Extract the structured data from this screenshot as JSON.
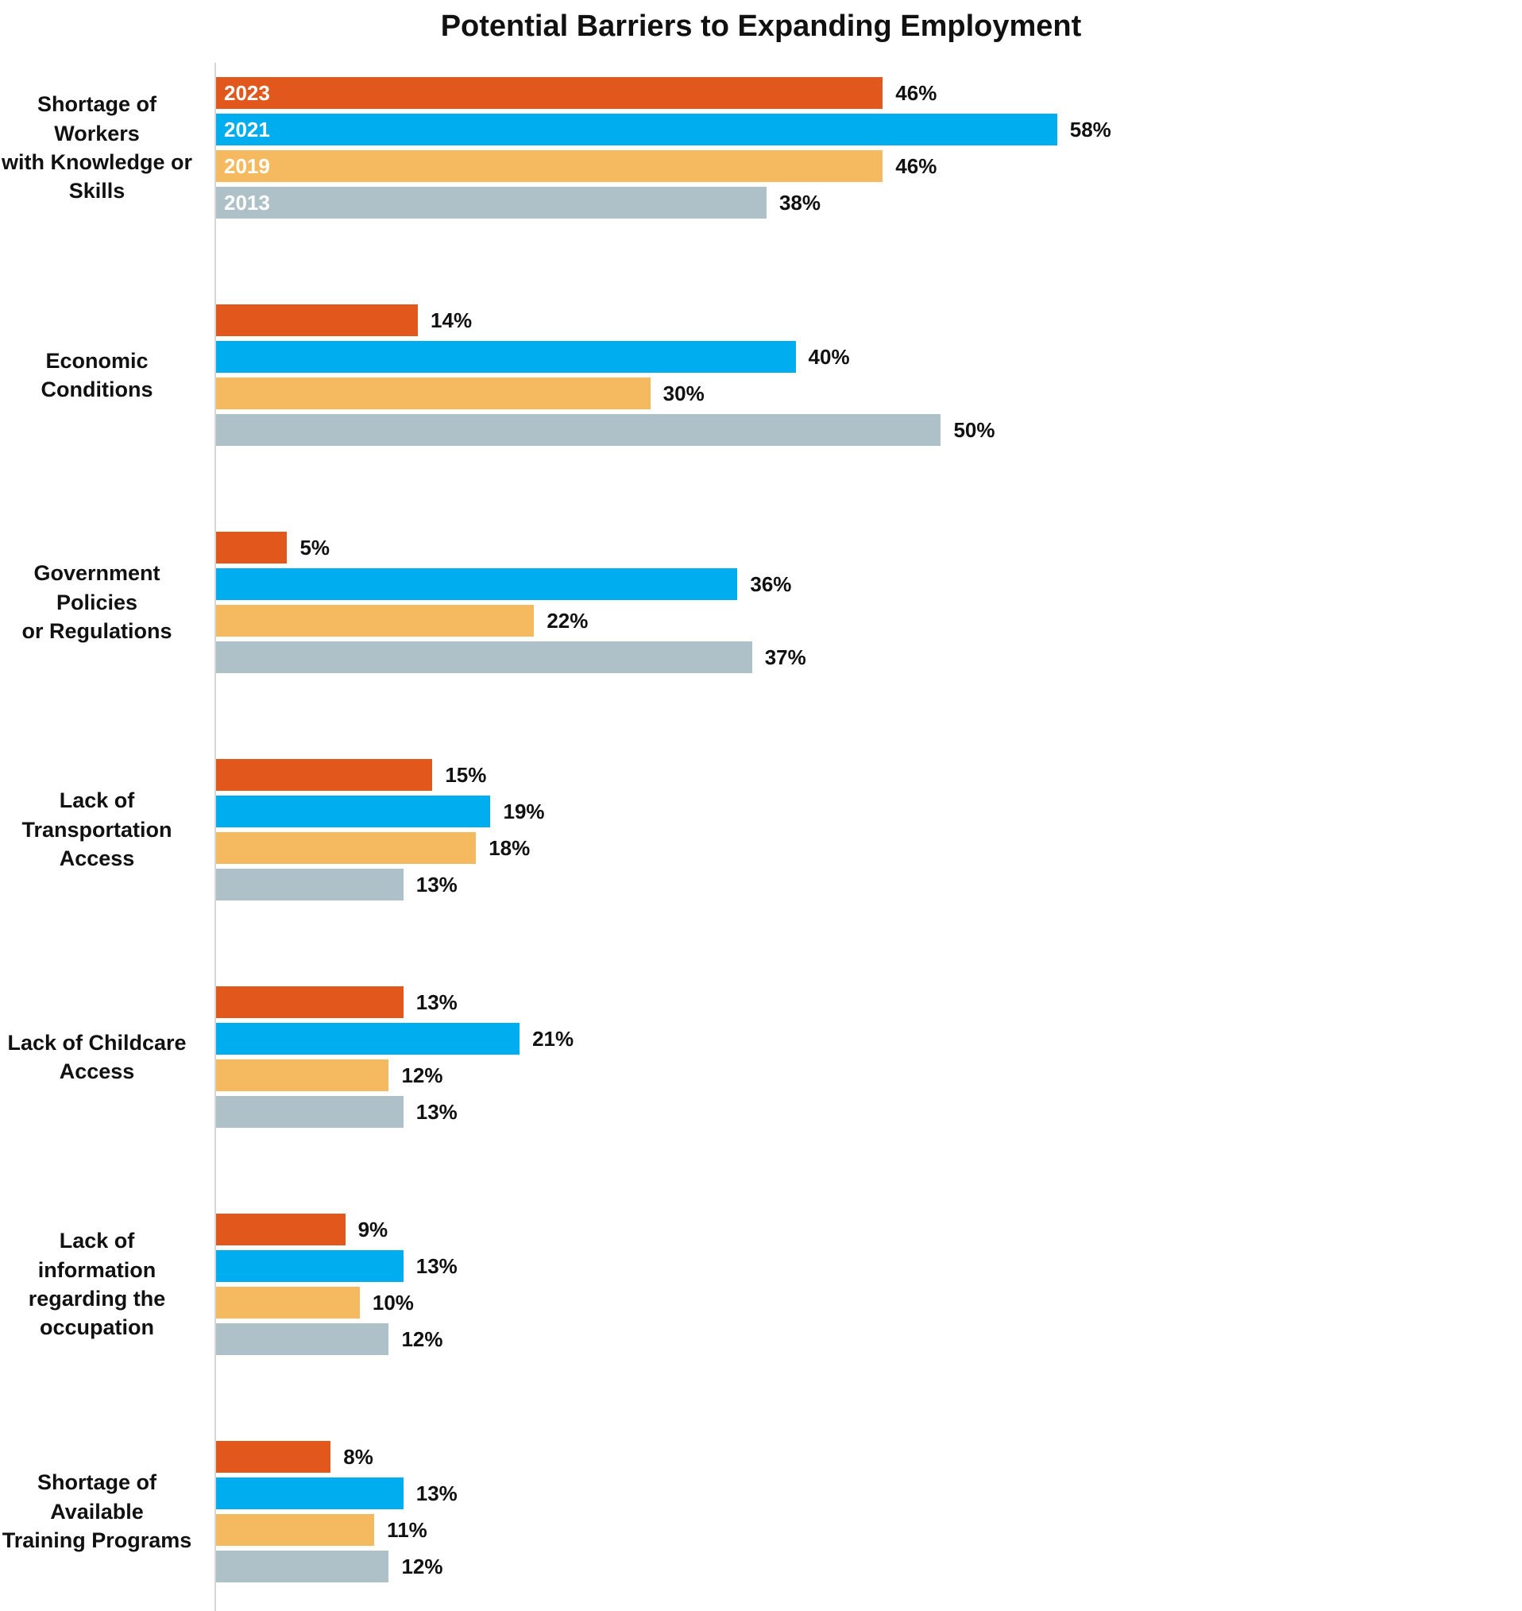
{
  "chart_data": {
    "type": "bar",
    "orientation": "horizontal",
    "title": "Potential Barriers to Expanding Employment",
    "categories": [
      "Shortage of Workers\nwith Knowledge or Skills",
      "Economic Conditions",
      "Government Policies\nor Regulations",
      "Lack of Transportation\nAccess",
      "Lack of Childcare\nAccess",
      "Lack of information\nregarding the occupation",
      "Shortage of Available\nTraining Programs"
    ],
    "series": [
      {
        "name": "2023",
        "color": "#E2571C",
        "values": [
          46,
          14,
          5,
          15,
          13,
          9,
          8
        ]
      },
      {
        "name": "2021",
        "color": "#00ADEE",
        "values": [
          58,
          40,
          36,
          19,
          21,
          13,
          13
        ]
      },
      {
        "name": "2019",
        "color": "#F5BA5F",
        "values": [
          46,
          30,
          22,
          18,
          12,
          10,
          11
        ]
      },
      {
        "name": "2013",
        "color": "#AFC1C8",
        "values": [
          38,
          50,
          37,
          13,
          13,
          12,
          12
        ]
      }
    ],
    "value_suffix": "%",
    "xlim": [
      0,
      90
    ],
    "grid": false,
    "legend_position": "year labels inside bars of first category group",
    "axis_line_color": "#D6D6D6"
  }
}
